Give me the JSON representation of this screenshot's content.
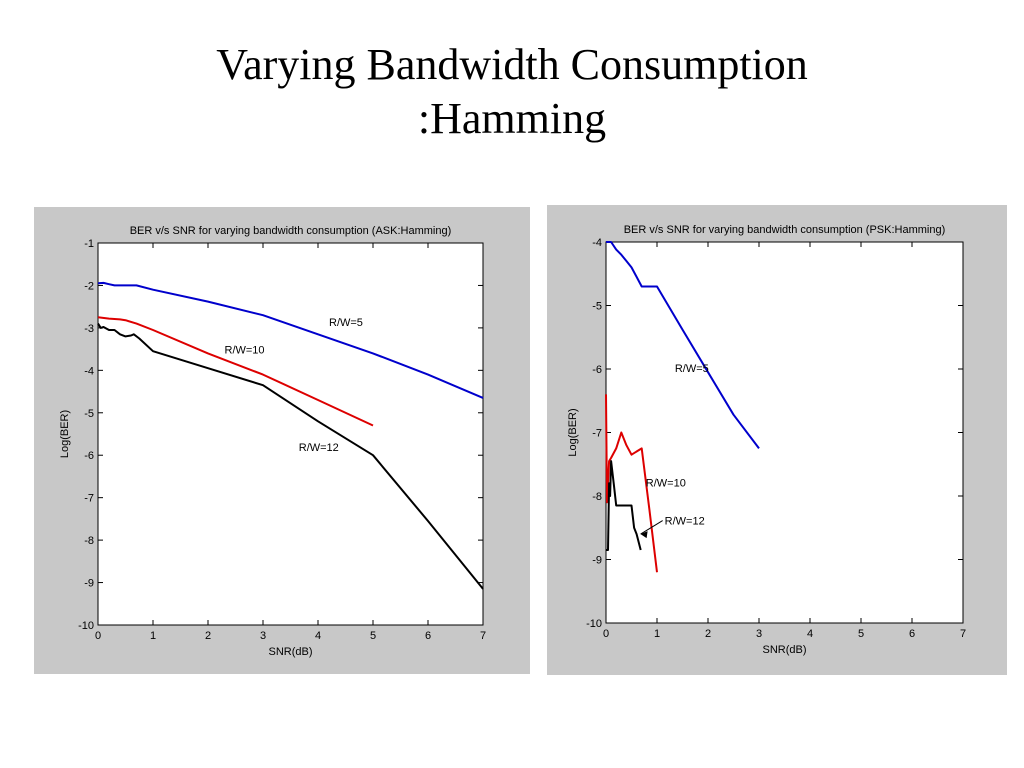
{
  "slide": {
    "title_line1": "Varying Bandwidth Consumption",
    "title_line2": ":Hamming"
  },
  "chart_data": [
    {
      "type": "line",
      "title": "BER v/s SNR for varying bandwidth consumption (ASK:Hamming)",
      "xlabel": "SNR(dB)",
      "ylabel": "Log(BER)",
      "xlim": [
        0,
        7
      ],
      "ylim": [
        -10,
        -1
      ],
      "xticks": [
        0,
        1,
        2,
        3,
        4,
        5,
        6,
        7
      ],
      "yticks": [
        -1,
        -2,
        -3,
        -4,
        -5,
        -6,
        -7,
        -8,
        -9,
        -10
      ],
      "grid": false,
      "series": [
        {
          "name": "R/W=5",
          "color": "#0000cc",
          "x": [
            0,
            0.1,
            0.2,
            0.3,
            0.5,
            0.7,
            1,
            2,
            3,
            4,
            5,
            6,
            7
          ],
          "y": [
            -1.95,
            -1.94,
            -1.97,
            -2.0,
            -2.0,
            -2.0,
            -2.1,
            -2.38,
            -2.7,
            -3.15,
            -3.6,
            -4.1,
            -4.65
          ]
        },
        {
          "name": "R/W=10",
          "color": "#dd0000",
          "x": [
            0,
            0.2,
            0.4,
            0.5,
            0.7,
            1,
            2,
            3,
            4,
            5
          ],
          "y": [
            -2.75,
            -2.78,
            -2.8,
            -2.82,
            -2.9,
            -3.05,
            -3.6,
            -4.1,
            -4.7,
            -5.3
          ]
        },
        {
          "name": "R/W=12",
          "color": "#000000",
          "x": [
            0,
            0.05,
            0.1,
            0.2,
            0.3,
            0.4,
            0.5,
            0.6,
            0.65,
            0.75,
            1,
            2,
            3,
            4,
            5,
            6,
            7
          ],
          "y": [
            -2.9,
            -3.0,
            -2.98,
            -3.05,
            -3.05,
            -3.15,
            -3.2,
            -3.18,
            -3.15,
            -3.25,
            -3.55,
            -3.95,
            -4.35,
            -5.2,
            -6.0,
            -7.55,
            -9.15
          ]
        }
      ],
      "annotations": [
        {
          "text": "R/W=5",
          "x": 4.2,
          "y": -2.95
        },
        {
          "text": "R/W=10",
          "x": 2.3,
          "y": -3.6
        },
        {
          "text": "R/W=12",
          "x": 3.65,
          "y": -5.9
        }
      ]
    },
    {
      "type": "line",
      "title": "BER v/s SNR for varying bandwidth consumption (PSK:Hamming)",
      "xlabel": "SNR(dB)",
      "ylabel": "Log(BER)",
      "xlim": [
        0,
        7
      ],
      "ylim": [
        -10,
        -4
      ],
      "xticks": [
        0,
        1,
        2,
        3,
        4,
        5,
        6,
        7
      ],
      "yticks": [
        -4,
        -5,
        -6,
        -7,
        -8,
        -9,
        -10
      ],
      "grid": false,
      "series": [
        {
          "name": "R/W=5",
          "color": "#0000cc",
          "x": [
            0,
            0.1,
            0.2,
            0.3,
            0.4,
            0.5,
            0.6,
            0.7,
            1,
            1.5,
            2,
            2.5,
            3
          ],
          "y": [
            -4.0,
            -4.0,
            -4.12,
            -4.2,
            -4.3,
            -4.4,
            -4.55,
            -4.7,
            -4.7,
            -5.38,
            -6.05,
            -6.72,
            -7.25
          ]
        },
        {
          "name": "R/W=10",
          "color": "#dd0000",
          "x": [
            0,
            0.02,
            0.04,
            0.06,
            0.1,
            0.2,
            0.3,
            0.4,
            0.5,
            0.6,
            0.7,
            0.85,
            1
          ],
          "y": [
            -6.4,
            -8.1,
            -7.8,
            -7.45,
            -7.4,
            -7.25,
            -7.0,
            -7.2,
            -7.35,
            -7.3,
            -7.25,
            -8.2,
            -9.2
          ]
        },
        {
          "name": "R/W=12",
          "color": "#000000",
          "x": [
            0,
            0.04,
            0.06,
            0.08,
            0.1,
            0.15,
            0.2,
            0.3,
            0.4,
            0.5,
            0.55,
            0.6,
            0.68
          ],
          "y": [
            -8.85,
            -8.85,
            -7.8,
            -8.0,
            -7.45,
            -7.8,
            -8.15,
            -8.15,
            -8.15,
            -8.15,
            -8.5,
            -8.6,
            -8.85
          ]
        }
      ],
      "annotations": [
        {
          "text": "R/W=5",
          "x": 1.35,
          "y": -6.05
        },
        {
          "text": "R/W=10",
          "x": 0.78,
          "y": -7.85
        },
        {
          "text": "R/W=12",
          "x": 1.15,
          "y": -8.45,
          "arrow_to": {
            "x": 0.6,
            "y": -8.6
          }
        }
      ]
    }
  ]
}
